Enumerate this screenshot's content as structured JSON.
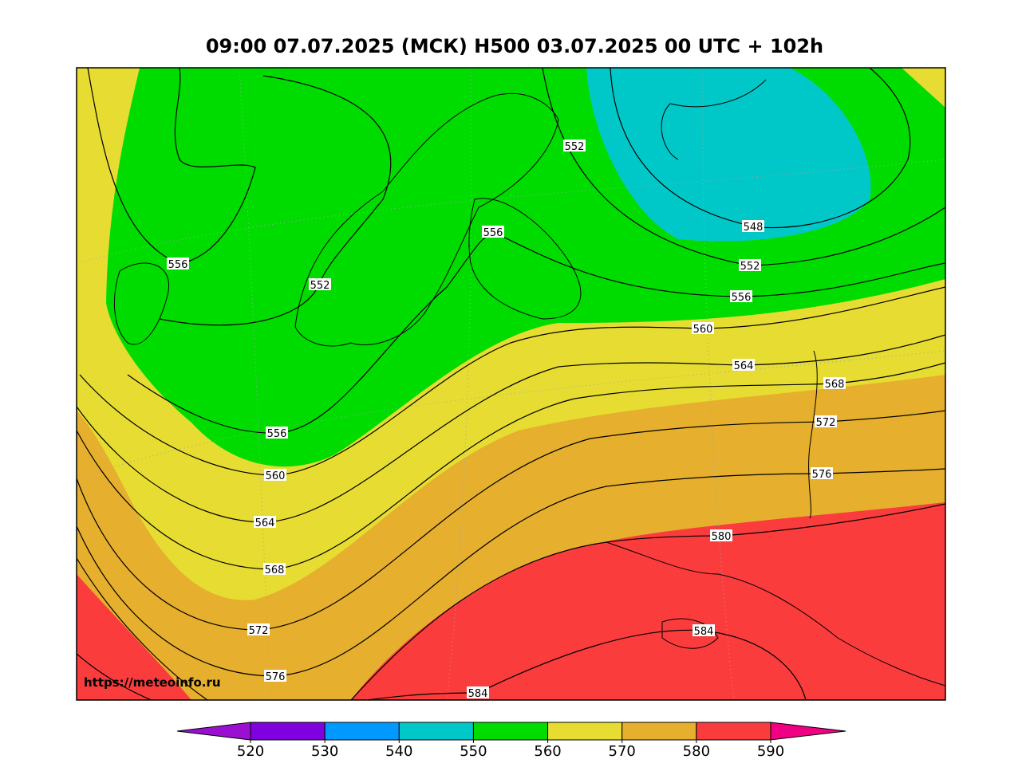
{
  "header": {
    "title": "09:00 07.07.2025 (МСК) H500  03.07.2025 00 UTC + 102h"
  },
  "map": {
    "source": "https://meteoinfo.ru",
    "contour_labels": [
      552,
      556,
      556,
      552,
      548,
      552,
      556,
      560,
      564,
      568,
      572,
      576,
      556,
      560,
      564,
      568,
      580,
      572,
      584,
      576,
      584
    ]
  },
  "colorbar": {
    "ticks": [
      520,
      530,
      540,
      550,
      560,
      570,
      580,
      590
    ],
    "colors": [
      "#9a10d0",
      "#8000e0",
      "#0099ff",
      "#00c8c8",
      "#00dc00",
      "#e6dc32",
      "#e6af2d",
      "#fa3c3c",
      "#f00082"
    ]
  }
}
